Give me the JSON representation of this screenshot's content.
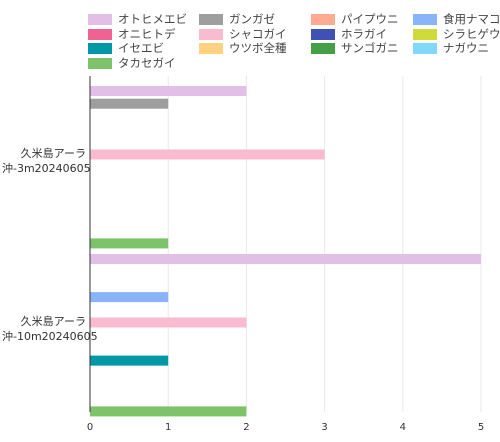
{
  "chart_data": {
    "type": "bar",
    "orientation": "horizontal",
    "categories": [
      {
        "lines": [
          "久米島アーラ",
          "沖-3m20240605"
        ]
      },
      {
        "lines": [
          "久米島アーラ",
          "沖-10m20240605"
        ]
      }
    ],
    "series": [
      {
        "name": "オトヒメエビ",
        "color": "#e1bfe6",
        "values": [
          2,
          5
        ]
      },
      {
        "name": "ガンガゼ",
        "color": "#9e9e9e",
        "values": [
          1,
          0
        ]
      },
      {
        "name": "パイプウニ",
        "color": "#ffab91",
        "values": [
          0,
          0
        ]
      },
      {
        "name": "食用ナマコ",
        "color": "#8ab4f8",
        "values": [
          0,
          1
        ]
      },
      {
        "name": "オニヒトデ",
        "color": "#f06292",
        "values": [
          0,
          0
        ]
      },
      {
        "name": "シャコガイ",
        "color": "#f8bbd0",
        "values": [
          3,
          2
        ]
      },
      {
        "name": "ホラガイ",
        "color": "#3f51b5",
        "values": [
          0,
          0
        ]
      },
      {
        "name": "シラヒゲウニ",
        "color": "#cddc39",
        "values": [
          0,
          0
        ]
      },
      {
        "name": "イセエビ",
        "color": "#0097a7",
        "values": [
          0,
          1
        ]
      },
      {
        "name": "ウツボ全種",
        "color": "#ffd180",
        "values": [
          0,
          0
        ]
      },
      {
        "name": "サンゴガニ",
        "color": "#43a047",
        "values": [
          0,
          0
        ]
      },
      {
        "name": "ナガウニ",
        "color": "#80d8ff",
        "values": [
          0,
          0
        ]
      },
      {
        "name": "タカセガイ",
        "color": "#7cc36a",
        "values": [
          1,
          2
        ]
      }
    ],
    "xlim": [
      0,
      5
    ],
    "xticks": [
      "0",
      "1",
      "2",
      "3",
      "4",
      "5"
    ],
    "grid": true,
    "legend_position": "top"
  }
}
